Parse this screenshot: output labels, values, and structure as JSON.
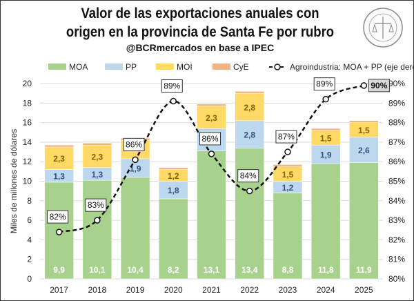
{
  "title_line1": "Valor de las exportaciones anuales con",
  "title_line2": "origen en la provincia de Santa Fe por rubro",
  "subtitle": "@BCRmercados en base a IPEC",
  "logo_text": "BOLSA DE COMERCIO DE ROSARIO",
  "chart_data": {
    "type": "bar",
    "stacked": true,
    "categories": [
      "2017",
      "2018",
      "2019",
      "2020",
      "2021",
      "2022",
      "2023",
      "2024",
      "2025"
    ],
    "ylabel": "Miles de millones de dólares",
    "ylim": [
      0,
      20
    ],
    "yticks": [
      "0",
      "2",
      "4",
      "6",
      "8",
      "10",
      "12",
      "14",
      "16",
      "18",
      "20"
    ],
    "y2lim": [
      80,
      90
    ],
    "y2ticks": [
      "80%",
      "81%",
      "82%",
      "83%",
      "84%",
      "85%",
      "86%",
      "87%",
      "88%",
      "89%",
      "90%"
    ],
    "grid": true,
    "legend_position": "top",
    "series": [
      {
        "name": "MOA",
        "color": "#a9d18e",
        "values": [
          9.9,
          10.1,
          10.4,
          8.2,
          13.1,
          13.4,
          8.8,
          11.8,
          11.9
        ],
        "labels": [
          "9,9",
          "10,1",
          "10,4",
          "8,2",
          "13,1",
          "13,4",
          "8,8",
          "11,8",
          "11,9"
        ]
      },
      {
        "name": "PP",
        "color": "#bdd7ee",
        "values": [
          1.3,
          1.3,
          1.9,
          1.8,
          2.3,
          2.8,
          1.2,
          1.9,
          2.6
        ],
        "labels": [
          "1,3",
          "1,3",
          "1,9",
          "1,8",
          "",
          "2,8",
          "1,2",
          "1,9",
          "2,6"
        ]
      },
      {
        "name": "MOI",
        "color": "#ffd966",
        "values": [
          2.3,
          2.3,
          1.9,
          1.2,
          2.3,
          2.8,
          1.5,
          1.5,
          1.5
        ],
        "labels": [
          "2,3",
          "2,3",
          "",
          "1,2",
          "2,3",
          "2,8",
          "1,5",
          "1,5",
          "1,5"
        ]
      },
      {
        "name": "CyE",
        "color": "#f4b183",
        "values": [
          0.2,
          0.2,
          0.2,
          0.2,
          0.2,
          0.2,
          0.2,
          0.2,
          0.2
        ]
      }
    ],
    "line": {
      "name": "Agroindustria: MOA + PP (eje derecho)",
      "axis": "right",
      "values": [
        82.4,
        83.0,
        86.1,
        89.1,
        86.4,
        84.5,
        86.5,
        89.2,
        89.9
      ],
      "labels": [
        "82%",
        "83%",
        "86%",
        "89%",
        "86%",
        "84%",
        "87%",
        "89%",
        "90%"
      ]
    }
  }
}
